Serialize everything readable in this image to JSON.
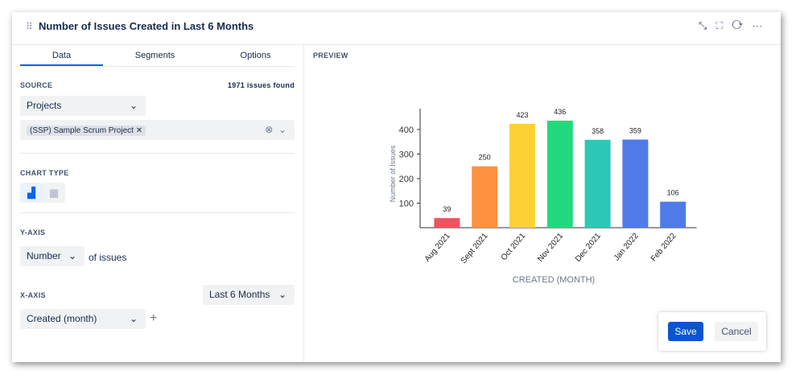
{
  "header": {
    "title": "Number of Issues Created in Last 6 Months"
  },
  "tabs": [
    "Data",
    "Segments",
    "Options"
  ],
  "source": {
    "label": "SOURCE",
    "count": "1971 issues found",
    "dropdown": "Projects",
    "tag": "(SSP) Sample Scrum Project"
  },
  "chart_type": {
    "label": "CHART TYPE"
  },
  "y_axis": {
    "label": "Y-AXIS",
    "dropdown": "Number",
    "suffix": "of issues"
  },
  "x_axis": {
    "label": "X-AXIS",
    "range": "Last 6 Months",
    "dropdown": "Created (month)"
  },
  "preview": {
    "label": "PREVIEW"
  },
  "buttons": {
    "save": "Save",
    "cancel": "Cancel"
  },
  "chart_data": {
    "type": "bar",
    "y_label": "Number of Issues",
    "x_label": "CREATED (MONTH)",
    "categories": [
      "Aug 2021",
      "Sept 2021",
      "Oct 2021",
      "Nov 2021",
      "Dec 2021",
      "Jan 2022",
      "Feb 2022"
    ],
    "values": [
      39,
      250,
      423,
      436,
      358,
      359,
      106
    ],
    "colors": [
      "#f0525f",
      "#fd9240",
      "#fdd134",
      "#24d97d",
      "#2bc9b6",
      "#4f7be8",
      "#4f7be8"
    ],
    "ylim": [
      0,
      485
    ],
    "yticks": [
      100,
      200,
      300,
      400
    ]
  }
}
